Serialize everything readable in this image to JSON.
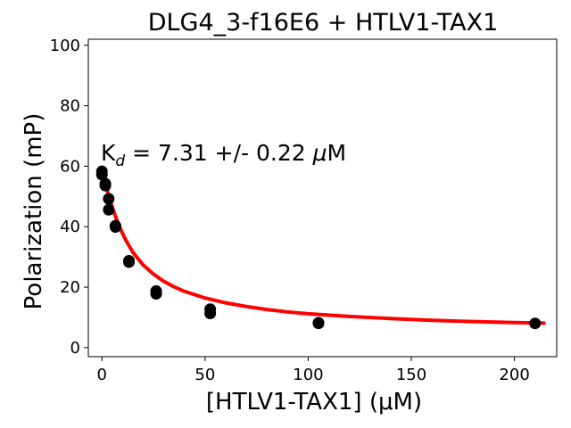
{
  "chart_data": {
    "type": "scatter",
    "title": "DLG4_3-f16E6 + HTLV1-TAX1",
    "xlabel": "[HTLV1-TAX1] (μM)",
    "ylabel": "Polarization (mP)",
    "annotation": {
      "prefix": "K",
      "subscript": "d",
      "value_text": " = 7.31 +/- 0.22 ",
      "unit_prefix": "μ",
      "unit": "M"
    },
    "xlim": [
      -6.6,
      220.5
    ],
    "ylim": [
      -3,
      102
    ],
    "xticks": [
      0,
      50,
      100,
      150,
      200
    ],
    "yticks": [
      0,
      20,
      40,
      60,
      80,
      100
    ],
    "series": [
      {
        "kind": "points",
        "color": "#000000",
        "points": [
          [
            0,
            58.3
          ],
          [
            0,
            57.2
          ],
          [
            1.64,
            54.2
          ],
          [
            1.64,
            53.6
          ],
          [
            3.28,
            49.2
          ],
          [
            3.28,
            45.6
          ],
          [
            6.56,
            40.3
          ],
          [
            6.56,
            39.9
          ],
          [
            13.1,
            28.7
          ],
          [
            13.1,
            28.3
          ],
          [
            26.3,
            18.7
          ],
          [
            26.3,
            17.8
          ],
          [
            52.5,
            12.7
          ],
          [
            52.5,
            11.3
          ],
          [
            105,
            8.2
          ],
          [
            105,
            8.0
          ],
          [
            210,
            8.0
          ]
        ]
      },
      {
        "kind": "fit",
        "color": "#ff0000",
        "points": [
          [
            0,
            58.8
          ],
          [
            2,
            53.5
          ],
          [
            4,
            48.6
          ],
          [
            6,
            44.4
          ],
          [
            8,
            40.8
          ],
          [
            10,
            37.7
          ],
          [
            12,
            35.0
          ],
          [
            15,
            31.5
          ],
          [
            20,
            27.3
          ],
          [
            25,
            24.3
          ],
          [
            30,
            21.9
          ],
          [
            35,
            20.1
          ],
          [
            40,
            18.6
          ],
          [
            50,
            16.4
          ],
          [
            60,
            14.8
          ],
          [
            70,
            13.6
          ],
          [
            80,
            12.6
          ],
          [
            90,
            11.8
          ],
          [
            100,
            11.2
          ],
          [
            120,
            10.3
          ],
          [
            140,
            9.6
          ],
          [
            160,
            9.0
          ],
          [
            180,
            8.6
          ],
          [
            200,
            8.3
          ],
          [
            215,
            8.1
          ]
        ]
      }
    ]
  }
}
